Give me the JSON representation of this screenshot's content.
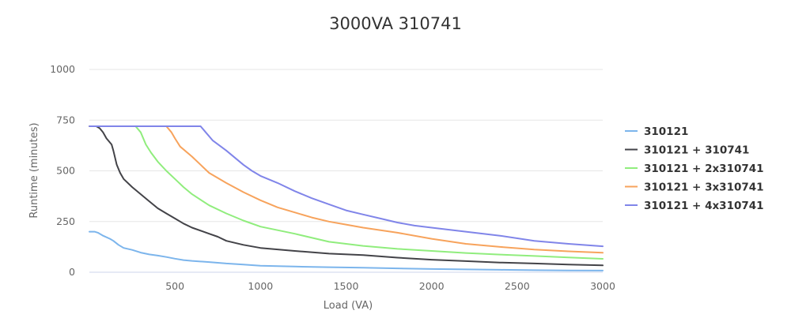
{
  "chart_data": {
    "type": "line",
    "title": "3000VA 310741",
    "xlabel": "Load (VA)",
    "ylabel": "Runtime (minutes)",
    "xlim": [
      0,
      3000
    ],
    "ylim": [
      0,
      1000
    ],
    "x_ticks": [
      500,
      1000,
      1500,
      2000,
      2500,
      3000
    ],
    "y_ticks": [
      0,
      250,
      500,
      750,
      1000
    ],
    "grid": true,
    "legend_position": "right",
    "series": [
      {
        "name": "310121",
        "color": "#7cb5ec",
        "points": [
          [
            0,
            200
          ],
          [
            30,
            200
          ],
          [
            50,
            195
          ],
          [
            80,
            180
          ],
          [
            120,
            165
          ],
          [
            140,
            155
          ],
          [
            170,
            135
          ],
          [
            200,
            120
          ],
          [
            250,
            110
          ],
          [
            300,
            97
          ],
          [
            350,
            88
          ],
          [
            400,
            82
          ],
          [
            450,
            75
          ],
          [
            500,
            67
          ],
          [
            550,
            60
          ],
          [
            600,
            56
          ],
          [
            700,
            50
          ],
          [
            800,
            43
          ],
          [
            900,
            38
          ],
          [
            1000,
            32
          ],
          [
            1200,
            28
          ],
          [
            1400,
            25
          ],
          [
            1600,
            22
          ],
          [
            1800,
            19
          ],
          [
            2000,
            16
          ],
          [
            2200,
            14
          ],
          [
            2400,
            12
          ],
          [
            2600,
            10
          ],
          [
            2800,
            9
          ],
          [
            3000,
            8
          ]
        ]
      },
      {
        "name": "310121 + 310741",
        "color": "#434348",
        "points": [
          [
            0,
            720
          ],
          [
            40,
            720
          ],
          [
            60,
            710
          ],
          [
            80,
            690
          ],
          [
            100,
            660
          ],
          [
            130,
            630
          ],
          [
            140,
            600
          ],
          [
            160,
            530
          ],
          [
            180,
            490
          ],
          [
            200,
            460
          ],
          [
            250,
            420
          ],
          [
            300,
            385
          ],
          [
            350,
            350
          ],
          [
            400,
            315
          ],
          [
            450,
            290
          ],
          [
            500,
            265
          ],
          [
            550,
            240
          ],
          [
            600,
            220
          ],
          [
            700,
            190
          ],
          [
            750,
            175
          ],
          [
            800,
            155
          ],
          [
            900,
            135
          ],
          [
            1000,
            120
          ],
          [
            1200,
            105
          ],
          [
            1400,
            92
          ],
          [
            1600,
            85
          ],
          [
            1800,
            72
          ],
          [
            2000,
            62
          ],
          [
            2200,
            55
          ],
          [
            2400,
            48
          ],
          [
            2600,
            43
          ],
          [
            2800,
            38
          ],
          [
            3000,
            34
          ]
        ]
      },
      {
        "name": "310121 + 2x310741",
        "color": "#90ed7d",
        "points": [
          [
            0,
            720
          ],
          [
            270,
            720
          ],
          [
            300,
            690
          ],
          [
            330,
            630
          ],
          [
            360,
            590
          ],
          [
            400,
            545
          ],
          [
            450,
            500
          ],
          [
            500,
            460
          ],
          [
            550,
            420
          ],
          [
            600,
            385
          ],
          [
            700,
            330
          ],
          [
            800,
            290
          ],
          [
            900,
            255
          ],
          [
            1000,
            225
          ],
          [
            1200,
            190
          ],
          [
            1400,
            150
          ],
          [
            1600,
            130
          ],
          [
            1800,
            115
          ],
          [
            2000,
            105
          ],
          [
            2200,
            95
          ],
          [
            2400,
            87
          ],
          [
            2600,
            80
          ],
          [
            2800,
            73
          ],
          [
            3000,
            66
          ]
        ]
      },
      {
        "name": "310121 + 3x310741",
        "color": "#f7a35c",
        "points": [
          [
            0,
            720
          ],
          [
            450,
            720
          ],
          [
            480,
            690
          ],
          [
            500,
            660
          ],
          [
            530,
            620
          ],
          [
            600,
            570
          ],
          [
            650,
            530
          ],
          [
            700,
            490
          ],
          [
            800,
            440
          ],
          [
            900,
            395
          ],
          [
            1000,
            355
          ],
          [
            1100,
            320
          ],
          [
            1200,
            295
          ],
          [
            1300,
            270
          ],
          [
            1400,
            250
          ],
          [
            1500,
            235
          ],
          [
            1600,
            220
          ],
          [
            1800,
            195
          ],
          [
            2000,
            165
          ],
          [
            2200,
            140
          ],
          [
            2400,
            125
          ],
          [
            2600,
            112
          ],
          [
            2800,
            103
          ],
          [
            3000,
            96
          ]
        ]
      },
      {
        "name": "310121 + 4x310741",
        "color": "#8085e9",
        "points": [
          [
            0,
            720
          ],
          [
            650,
            720
          ],
          [
            680,
            690
          ],
          [
            720,
            650
          ],
          [
            800,
            600
          ],
          [
            850,
            565
          ],
          [
            900,
            530
          ],
          [
            950,
            500
          ],
          [
            1000,
            475
          ],
          [
            1100,
            440
          ],
          [
            1200,
            400
          ],
          [
            1300,
            365
          ],
          [
            1400,
            335
          ],
          [
            1500,
            305
          ],
          [
            1600,
            285
          ],
          [
            1700,
            265
          ],
          [
            1800,
            245
          ],
          [
            1900,
            230
          ],
          [
            2000,
            220
          ],
          [
            2200,
            200
          ],
          [
            2400,
            180
          ],
          [
            2600,
            155
          ],
          [
            2800,
            140
          ],
          [
            3000,
            128
          ]
        ]
      }
    ]
  }
}
